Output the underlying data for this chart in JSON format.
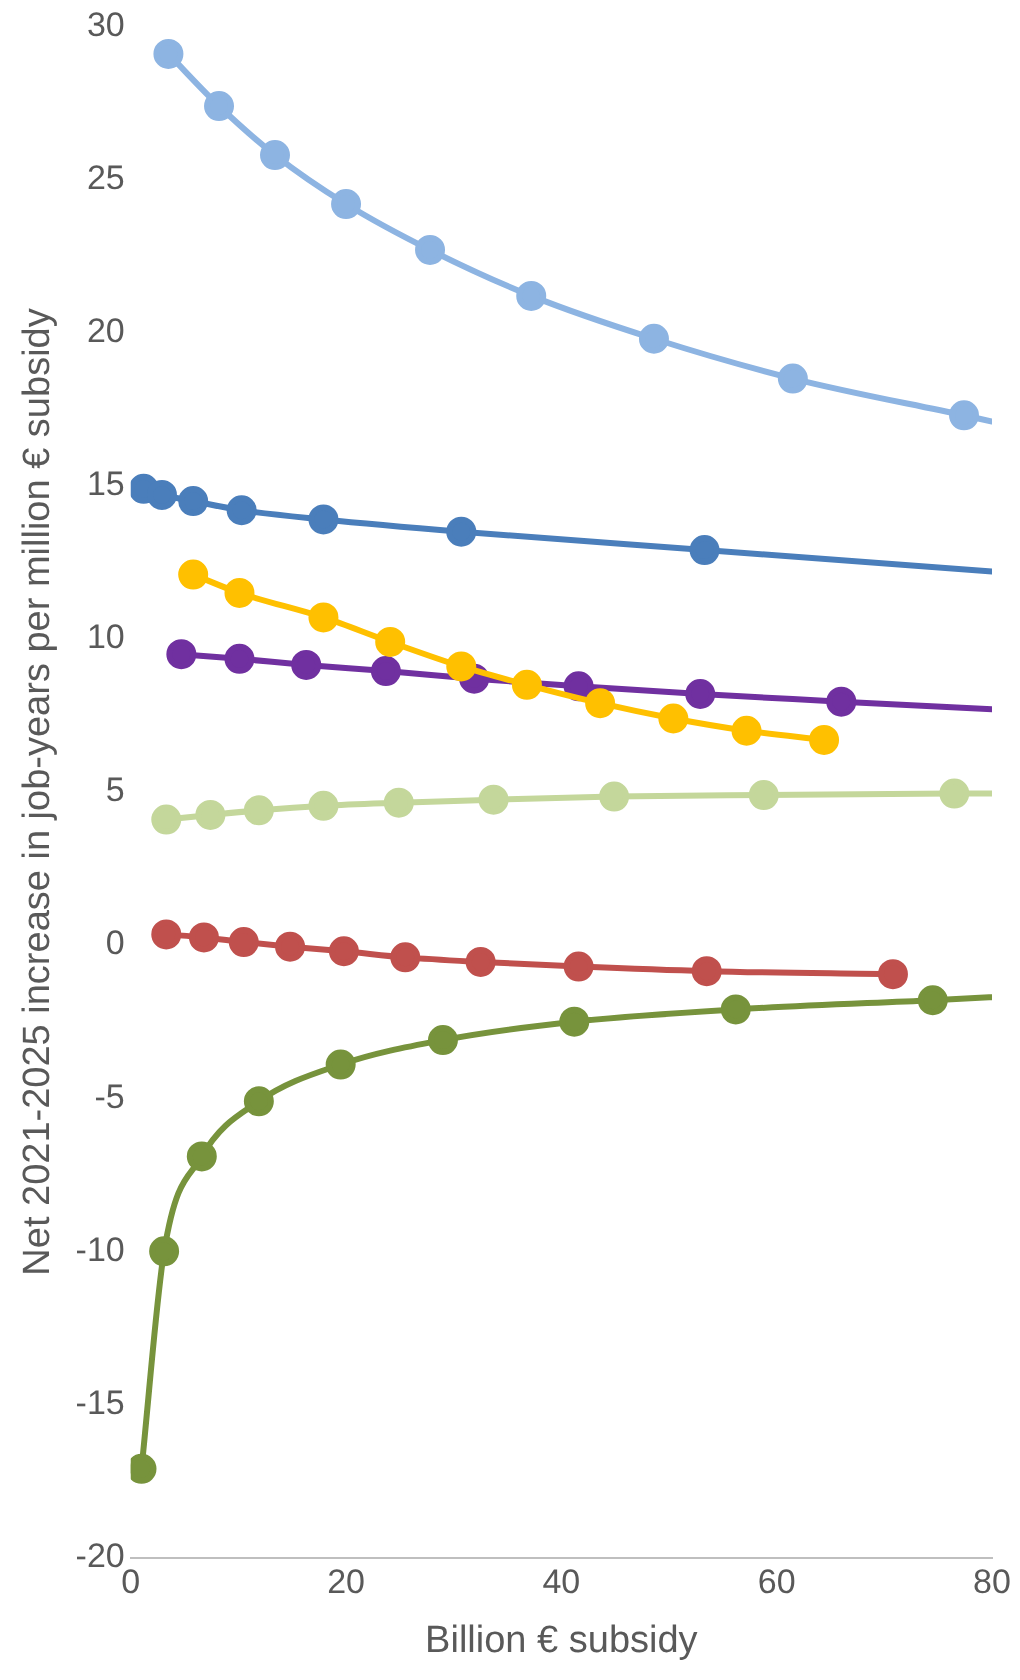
{
  "chart_data": {
    "type": "line",
    "xlabel": "Billion € subsidy",
    "ylabel": "Net 2021-2025 increase in job-years per million € subsidy",
    "xlim": [
      0,
      80
    ],
    "xticks": [
      0,
      20,
      40,
      60,
      80
    ],
    "ylim": [
      -20,
      30
    ],
    "yticks": [
      -20,
      -15,
      -10,
      -5,
      0,
      5,
      10,
      15,
      20,
      25,
      30
    ],
    "grid": false,
    "legend": false,
    "marker": "circle",
    "line_style": "solid",
    "series": [
      {
        "color": "#8db4e2",
        "x": [
          3.5,
          8.2,
          13.4,
          20,
          27.8,
          37.2,
          48.6,
          61.5,
          77.4
        ],
        "values": [
          29.1,
          27.4,
          25.8,
          24.2,
          22.7,
          21.2,
          19.8,
          18.5,
          17.3
        ]
      },
      {
        "color": "#4a7ebb",
        "x": [
          1.2,
          2.9,
          5.8,
          10.3,
          17.9,
          30.7,
          53.3
        ],
        "values": [
          14.9,
          14.7,
          14.5,
          14.2,
          13.9,
          13.5,
          12.9
        ]
      },
      {
        "color": "#ffc000",
        "x": [
          5.8,
          10.1,
          17.9,
          24.1,
          30.7,
          36.8,
          43.6,
          50.4,
          57.2,
          64.4
        ],
        "values": [
          12.1,
          11.5,
          10.7,
          9.9,
          9.1,
          8.5,
          7.9,
          7.4,
          7.0,
          6.7
        ]
      },
      {
        "color": "#7030a0",
        "x": [
          4.7,
          10.1,
          16.3,
          23.7,
          31.9,
          41.6,
          52.9,
          66.0
        ],
        "values": [
          9.5,
          9.35,
          9.15,
          8.95,
          8.7,
          8.45,
          8.2,
          7.95
        ]
      },
      {
        "color": "#c4d79b",
        "x": [
          3.3,
          7.4,
          11.9,
          17.9,
          24.9,
          33.7,
          44.9,
          58.8,
          76.5
        ],
        "values": [
          4.1,
          4.25,
          4.4,
          4.55,
          4.65,
          4.75,
          4.85,
          4.9,
          4.95
        ]
      },
      {
        "color": "#c0504d",
        "x": [
          3.3,
          6.8,
          10.5,
          14.8,
          19.8,
          25.5,
          32.5,
          41.6,
          53.5,
          70.8
        ],
        "values": [
          0.35,
          0.25,
          0.1,
          -0.05,
          -0.2,
          -0.4,
          -0.55,
          -0.7,
          -0.85,
          -0.95
        ]
      },
      {
        "color": "#77933c",
        "x": [
          1.0,
          3.1,
          6.6,
          11.9,
          19.5,
          29.0,
          41.2,
          56.2,
          74.5
        ],
        "values": [
          -17.1,
          -10.0,
          -6.9,
          -5.1,
          -3.9,
          -3.1,
          -2.5,
          -2.1,
          -1.8
        ]
      },
      {
        "type": "line",
        "marker": "none",
        "color": "#8db4e2",
        "x": [
          77.4,
          80
        ],
        "values": [
          17.3,
          17.1
        ]
      },
      {
        "type": "line",
        "marker": "none",
        "color": "#4a7ebb",
        "x": [
          53.3,
          80
        ],
        "values": [
          12.9,
          12.2
        ]
      },
      {
        "type": "line",
        "marker": "none",
        "color": "#7030a0",
        "x": [
          66.0,
          80
        ],
        "values": [
          7.95,
          7.7
        ]
      },
      {
        "type": "line",
        "marker": "none",
        "color": "#c4d79b",
        "x": [
          76.5,
          80
        ],
        "values": [
          4.95,
          4.95
        ]
      },
      {
        "type": "line",
        "marker": "none",
        "color": "#77933c",
        "x": [
          74.5,
          80
        ],
        "values": [
          -1.8,
          -1.7
        ]
      }
    ]
  }
}
